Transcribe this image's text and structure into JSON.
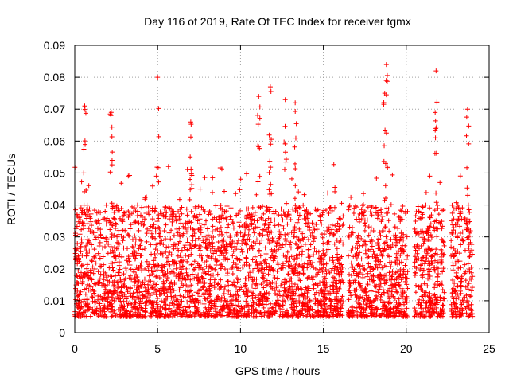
{
  "chart_data": {
    "type": "scatter",
    "title": "Day 116 of 2019, Rate Of TEC Index for receiver tgmx",
    "xlabel": "GPS time / hours",
    "ylabel": "ROTI / TECUs",
    "xlim": [
      0,
      25
    ],
    "ylim": [
      0,
      0.09
    ],
    "xticks": [
      0,
      5,
      10,
      15,
      20,
      25
    ],
    "xtick_labels": [
      "0",
      "5",
      "10",
      "15",
      "20",
      "25"
    ],
    "yticks": [
      0,
      0.01,
      0.02,
      0.03,
      0.04,
      0.05,
      0.06,
      0.07,
      0.08,
      0.09
    ],
    "ytick_labels": [
      "0",
      "0.01",
      "0.02",
      "0.03",
      "0.04",
      "0.05",
      "0.06",
      "0.07",
      "0.08",
      "0.09"
    ],
    "grid": true,
    "marker": "+",
    "series": [
      {
        "name": "ROTI",
        "color": "#ff0000",
        "data_windows": [
          {
            "x_start": 0.0,
            "x_end": 16.2
          },
          {
            "x_start": 16.5,
            "x_end": 20.1
          },
          {
            "x_start": 20.5,
            "x_end": 21.5
          },
          {
            "x_start": 21.4,
            "x_end": 22.3
          },
          {
            "x_start": 22.7,
            "x_end": 24.0
          }
        ],
        "typical_range": [
          0.005,
          0.04
        ],
        "max_value": 0.084,
        "peaks": [
          {
            "x": 0.6,
            "y": 0.071
          },
          {
            "x": 2.2,
            "y": 0.069
          },
          {
            "x": 5.0,
            "y": 0.08
          },
          {
            "x": 7.0,
            "y": 0.066
          },
          {
            "x": 11.1,
            "y": 0.074
          },
          {
            "x": 11.8,
            "y": 0.077
          },
          {
            "x": 12.7,
            "y": 0.073
          },
          {
            "x": 13.3,
            "y": 0.072
          },
          {
            "x": 18.8,
            "y": 0.084
          },
          {
            "x": 18.7,
            "y": 0.075
          },
          {
            "x": 21.8,
            "y": 0.082
          },
          {
            "x": 23.7,
            "y": 0.07
          }
        ]
      }
    ]
  }
}
